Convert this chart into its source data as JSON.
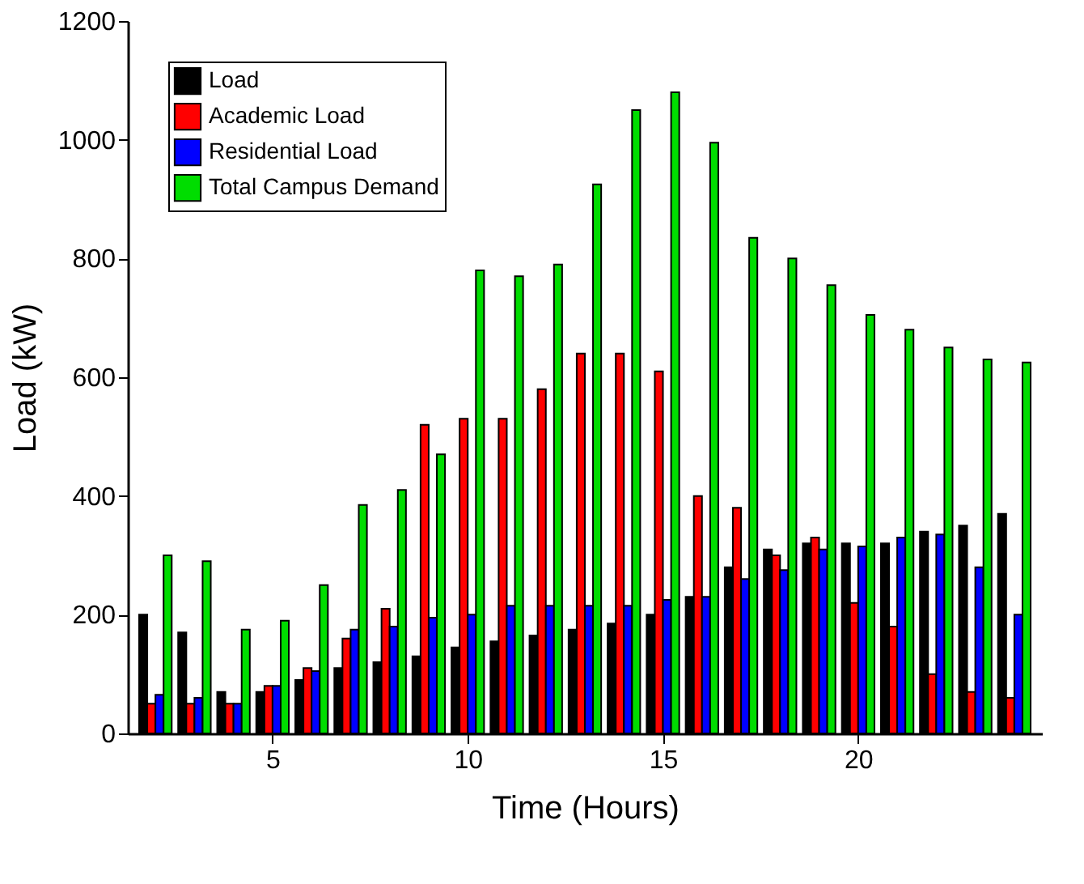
{
  "chart_data": {
    "type": "bar",
    "xlabel": "Time (Hours)",
    "ylabel": "Load (kW)",
    "x": [
      2,
      3,
      4,
      5,
      6,
      7,
      8,
      9,
      10,
      11,
      12,
      13,
      14,
      15,
      16,
      17,
      18,
      19,
      20,
      21,
      22,
      23,
      24
    ],
    "series": [
      {
        "name": "Load",
        "color": "#000000",
        "values": [
          200,
          170,
          70,
          70,
          90,
          110,
          120,
          130,
          145,
          155,
          165,
          175,
          185,
          200,
          230,
          280,
          310,
          320,
          320,
          320,
          340,
          350,
          370
        ]
      },
      {
        "name": "Academic Load",
        "color": "#ff0000",
        "values": [
          50,
          50,
          50,
          80,
          110,
          160,
          210,
          520,
          530,
          530,
          580,
          640,
          640,
          610,
          400,
          380,
          300,
          330,
          220,
          180,
          100,
          70,
          60
        ]
      },
      {
        "name": "Residential Load",
        "color": "#0000ff",
        "values": [
          65,
          60,
          50,
          80,
          105,
          175,
          180,
          195,
          200,
          215,
          215,
          215,
          215,
          225,
          230,
          260,
          275,
          310,
          315,
          330,
          335,
          280,
          200
        ]
      },
      {
        "name": "Total Campus Demand",
        "color": "#00dd00",
        "values": [
          300,
          290,
          175,
          190,
          250,
          385,
          410,
          470,
          780,
          770,
          790,
          925,
          1050,
          1080,
          995,
          835,
          800,
          755,
          705,
          680,
          650,
          630,
          625
        ]
      }
    ],
    "xlim": [
      1.5,
      24.5
    ],
    "xticks": [
      5,
      10,
      15,
      20
    ],
    "ylim": [
      0,
      1200
    ],
    "yticks": [
      0,
      200,
      400,
      600,
      800,
      1000,
      1200
    ],
    "grid": false,
    "legend": "top left"
  }
}
